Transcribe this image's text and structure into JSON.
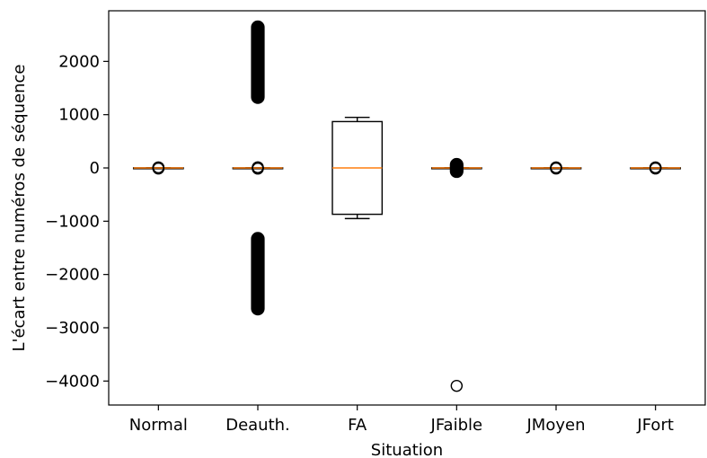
{
  "chart_data": {
    "type": "box",
    "title": "",
    "xlabel": "Situation",
    "ylabel": "L'écart entre numéros de séquence",
    "ylim": [
      -4450,
      2950
    ],
    "yticks": [
      -4000,
      -3000,
      -2000,
      -1000,
      0,
      1000,
      2000
    ],
    "ytick_labels": [
      "−4000",
      "−3000",
      "−2000",
      "−1000",
      "0",
      "1000",
      "2000"
    ],
    "categories": [
      "Normal",
      "Deauth.",
      "FA",
      "JFaible",
      "JMoyen",
      "JFort"
    ],
    "boxes": [
      {
        "name": "Normal",
        "whisker_low": -5,
        "q1": -2,
        "median": 0,
        "q3": 2,
        "whisker_high": 5,
        "outlier_bands": [],
        "outliers": [
          -10,
          -8,
          -6,
          6,
          8,
          10
        ]
      },
      {
        "name": "Deauth.",
        "whisker_low": -5,
        "q1": -2,
        "median": 0,
        "q3": 2,
        "whisker_high": 5,
        "outlier_bands": [
          [
            1330,
            2640
          ],
          [
            -2640,
            -1330
          ]
        ],
        "outliers": [
          -12,
          -8,
          8,
          12
        ]
      },
      {
        "name": "FA",
        "whisker_low": -950,
        "q1": -870,
        "median": 0,
        "q3": 870,
        "whisker_high": 950,
        "outlier_bands": [],
        "outliers": []
      },
      {
        "name": "JFaible",
        "whisker_low": -5,
        "q1": -2,
        "median": 0,
        "q3": 2,
        "whisker_high": 5,
        "outlier_bands": [
          [
            -60,
            60
          ]
        ],
        "outliers": [
          -4090
        ]
      },
      {
        "name": "JMoyen",
        "whisker_low": -5,
        "q1": -2,
        "median": 0,
        "q3": 2,
        "whisker_high": 5,
        "outlier_bands": [],
        "outliers": [
          -10,
          -8,
          8,
          10
        ]
      },
      {
        "name": "JFort",
        "whisker_low": -5,
        "q1": -2,
        "median": 0,
        "q3": 2,
        "whisker_high": 5,
        "outlier_bands": [],
        "outliers": [
          -10,
          -8,
          8,
          10
        ]
      }
    ],
    "colors": {
      "median": "#ff7f0e",
      "box": "#000000",
      "outlier_edge": "#000000"
    },
    "grid": false,
    "legend": "none"
  }
}
